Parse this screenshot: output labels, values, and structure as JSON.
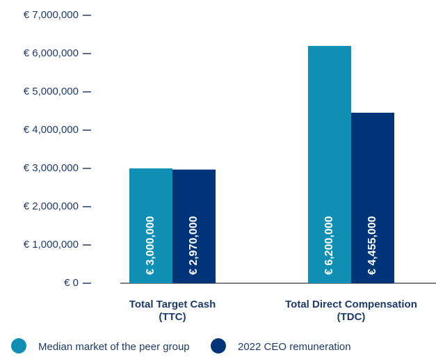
{
  "chart_data": {
    "type": "bar",
    "categories": [
      "Total Target Cash\n(TTC)",
      "Total Direct Compensation\n(TDC)"
    ],
    "series": [
      {
        "name": "Median market of the peer group",
        "color": "#0e8fb3",
        "values": [
          3000000,
          6200000
        ],
        "value_labels": [
          "€ 3,000,000",
          "€ 6,200,000"
        ]
      },
      {
        "name": "2022 CEO remuneration",
        "color": "#003478",
        "values": [
          2970000,
          4455000
        ],
        "value_labels": [
          "€ 2,970,000",
          "€ 4,455,000"
        ]
      }
    ],
    "ylim": [
      0,
      7000000
    ],
    "yticks": [
      {
        "value": 0,
        "label": "€ 0"
      },
      {
        "value": 1000000,
        "label": "€ 1,000,000"
      },
      {
        "value": 2000000,
        "label": "€ 2,000,000"
      },
      {
        "value": 3000000,
        "label": "€ 3,000,000"
      },
      {
        "value": 4000000,
        "label": "€ 4,000,000"
      },
      {
        "value": 5000000,
        "label": "€ 5,000,000"
      },
      {
        "value": 6000000,
        "label": "€ 6,000,000"
      },
      {
        "value": 7000000,
        "label": "€ 7,000,000"
      }
    ],
    "legend": "bottom"
  }
}
